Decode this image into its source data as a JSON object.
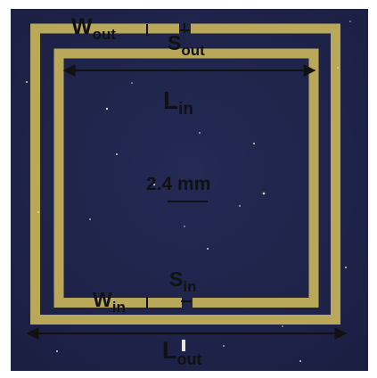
{
  "colors": {
    "frame_bg": "#ffffff",
    "substrate": "#20244a",
    "conductor": "#b9a85a",
    "annotation": "#111111",
    "speck": "#d8d4b0"
  },
  "labels": {
    "w_out": {
      "main": "W",
      "sub": "out"
    },
    "s_out": {
      "main": "S",
      "sub": "out"
    },
    "l_in": {
      "main": "L",
      "sub": "in"
    },
    "scale": "2.4 mm",
    "s_in": {
      "main": "S",
      "sub": "in"
    },
    "w_in": {
      "main": "W",
      "sub": "in"
    },
    "l_out": {
      "main": "L",
      "sub": "out"
    }
  }
}
